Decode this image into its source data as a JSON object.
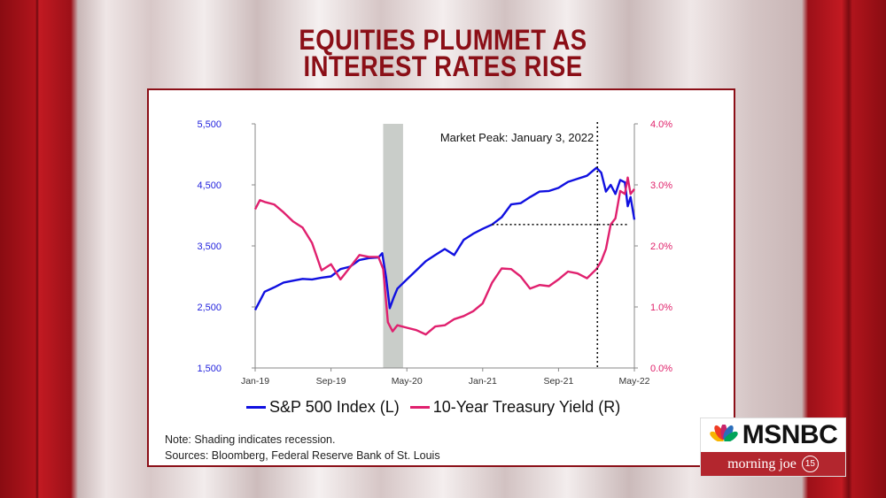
{
  "headline": {
    "line1": "EQUITIES PLUMMET AS",
    "line2": "INTEREST RATES RISE"
  },
  "chart_data": {
    "type": "line",
    "x_ticks": [
      "Jan-19",
      "Sep-19",
      "May-20",
      "Jan-21",
      "Sep-21",
      "May-22"
    ],
    "x_range_months": [
      0,
      40
    ],
    "y_left": {
      "ticks": [
        "1,500",
        "2,500",
        "3,500",
        "4,500",
        "5,500"
      ],
      "range": [
        1500,
        5500
      ],
      "color": "#2222dd"
    },
    "y_right": {
      "ticks": [
        "0.0%",
        "1.0%",
        "2.0%",
        "3.0%",
        "4.0%"
      ],
      "range": [
        0,
        4
      ],
      "color": "#e0226b"
    },
    "recession_shading": {
      "from": 13.5,
      "to": 15.6
    },
    "annotation": {
      "text": "Market Peak: January 3, 2022",
      "x": 36.1,
      "y": 3850
    },
    "series": [
      {
        "name": "S&P 500 Index (L)",
        "axis": "left",
        "color": "#1010e0",
        "x": [
          0,
          1,
          2,
          3,
          4,
          5,
          6,
          7,
          8,
          9,
          10,
          11,
          12,
          13,
          13.4,
          13.8,
          14.2,
          14.6,
          15,
          16,
          17,
          18,
          19,
          20,
          21,
          22,
          23,
          24,
          25,
          26,
          27,
          28,
          29,
          30,
          31,
          32,
          33,
          34,
          35,
          36,
          36.5,
          37,
          37.5,
          38,
          38.5,
          39,
          39.3,
          39.6,
          40
        ],
        "values": [
          2450,
          2750,
          2820,
          2900,
          2930,
          2960,
          2950,
          2980,
          3000,
          3120,
          3160,
          3270,
          3300,
          3310,
          3380,
          2990,
          2480,
          2650,
          2800,
          2950,
          3100,
          3250,
          3350,
          3450,
          3350,
          3600,
          3700,
          3780,
          3850,
          3970,
          4180,
          4200,
          4300,
          4390,
          4400,
          4450,
          4550,
          4600,
          4650,
          4780,
          4700,
          4390,
          4500,
          4350,
          4580,
          4540,
          4150,
          4300,
          3930
        ]
      },
      {
        "name": "10-Year Treasury Yield (R)",
        "axis": "right",
        "color": "#e0206e",
        "x": [
          0,
          0.5,
          1,
          2,
          3,
          4,
          5,
          6,
          7,
          8,
          9,
          10,
          11,
          12,
          13,
          13.5,
          14,
          14.5,
          15,
          16,
          17,
          18,
          19,
          20,
          21,
          22,
          23,
          24,
          25,
          26,
          27,
          28,
          29,
          30,
          31,
          32,
          33,
          34,
          35,
          36,
          36.5,
          37,
          37.5,
          38,
          38.5,
          39,
          39.3,
          39.6,
          40
        ],
        "values": [
          2.6,
          2.75,
          2.72,
          2.68,
          2.55,
          2.4,
          2.3,
          2.05,
          1.6,
          1.7,
          1.45,
          1.65,
          1.85,
          1.82,
          1.82,
          1.62,
          0.75,
          0.6,
          0.7,
          0.66,
          0.62,
          0.55,
          0.68,
          0.7,
          0.8,
          0.85,
          0.93,
          1.06,
          1.4,
          1.63,
          1.62,
          1.5,
          1.3,
          1.36,
          1.34,
          1.45,
          1.58,
          1.55,
          1.47,
          1.62,
          1.75,
          1.95,
          2.35,
          2.45,
          2.9,
          2.85,
          3.12,
          2.85,
          2.93
        ]
      }
    ]
  },
  "legend": {
    "spx_label": "S&P 500 Index (L)",
    "yield_label": "10-Year Treasury Yield (R)"
  },
  "notes": {
    "line1": "Note: Shading indicates recession.",
    "line2": "Sources: Bloomberg, Federal Reserve Bank of St. Louis"
  },
  "brand": {
    "network": "MSNBC",
    "show": "morning joe",
    "badge": "15"
  }
}
